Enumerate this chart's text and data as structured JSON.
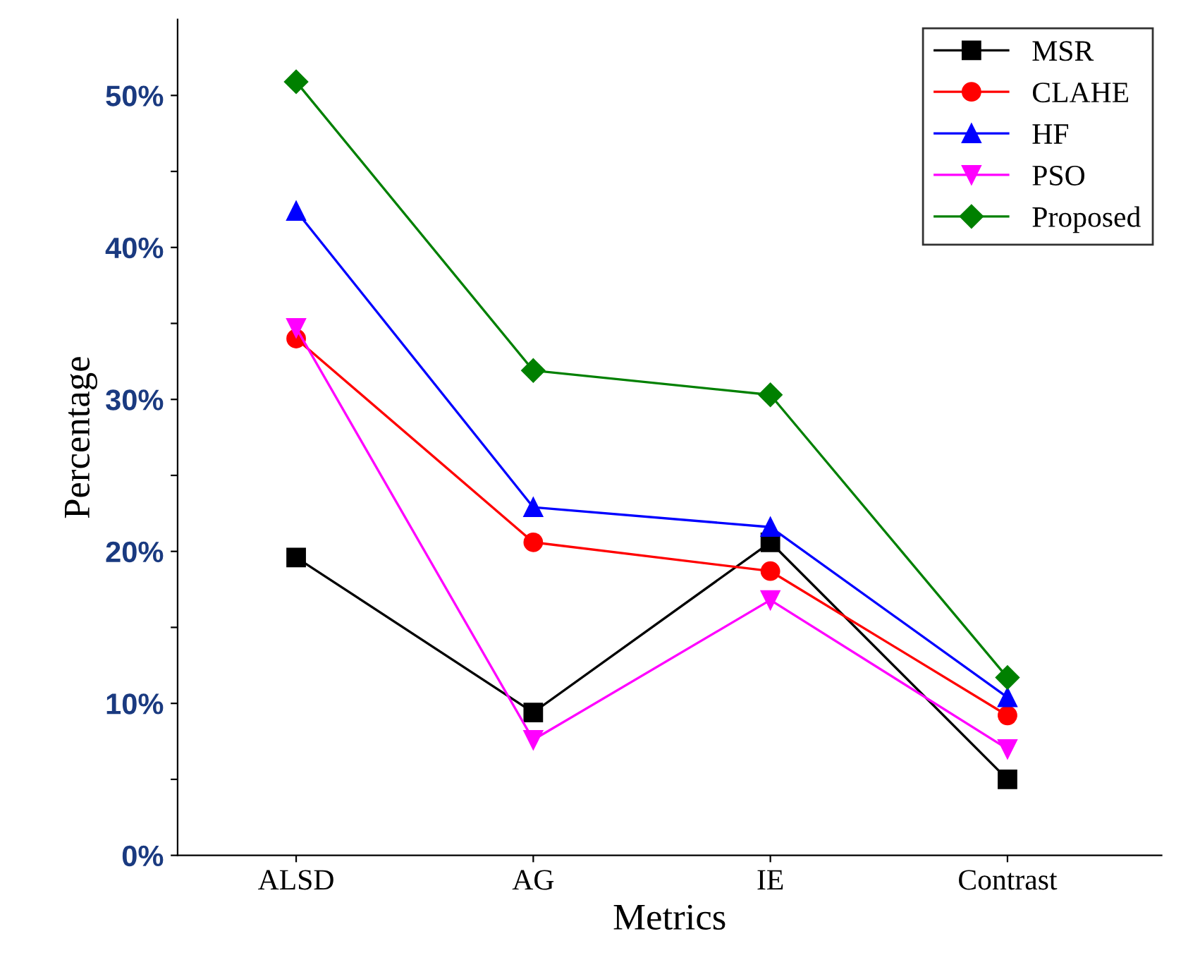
{
  "chart_data": {
    "type": "line",
    "xlabel": "Metrics",
    "ylabel": "Percentage",
    "categories": [
      "ALSD",
      "AG",
      "IE",
      "Contrast"
    ],
    "series": [
      {
        "name": "MSR",
        "color": "#000000",
        "marker": "square",
        "values": [
          19.6,
          9.4,
          20.6,
          5.0
        ]
      },
      {
        "name": "CLAHE",
        "color": "#ff0000",
        "marker": "circle",
        "values": [
          34.0,
          20.6,
          18.7,
          9.2
        ]
      },
      {
        "name": "HF",
        "color": "#0000ff",
        "marker": "triangle",
        "values": [
          42.4,
          22.9,
          21.6,
          10.4
        ]
      },
      {
        "name": "PSO",
        "color": "#ff00ff",
        "marker": "triangle_down",
        "values": [
          34.7,
          7.6,
          16.8,
          7.0
        ]
      },
      {
        "name": "Proposed",
        "color": "#008000",
        "marker": "diamond",
        "values": [
          50.9,
          31.9,
          30.3,
          11.7
        ]
      }
    ],
    "ylim": [
      0,
      55
    ],
    "yticks": [
      {
        "value": 0,
        "label": "0%"
      },
      {
        "value": 5,
        "label": null
      },
      {
        "value": 10,
        "label": "10%"
      },
      {
        "value": 15,
        "label": null
      },
      {
        "value": 20,
        "label": "20%"
      },
      {
        "value": 25,
        "label": null
      },
      {
        "value": 30,
        "label": "30%"
      },
      {
        "value": 35,
        "label": null
      },
      {
        "value": 40,
        "label": "40%"
      },
      {
        "value": 45,
        "label": null
      },
      {
        "value": 50,
        "label": "50%"
      }
    ],
    "grid": false,
    "legend": "top right",
    "line_style": "solid"
  }
}
